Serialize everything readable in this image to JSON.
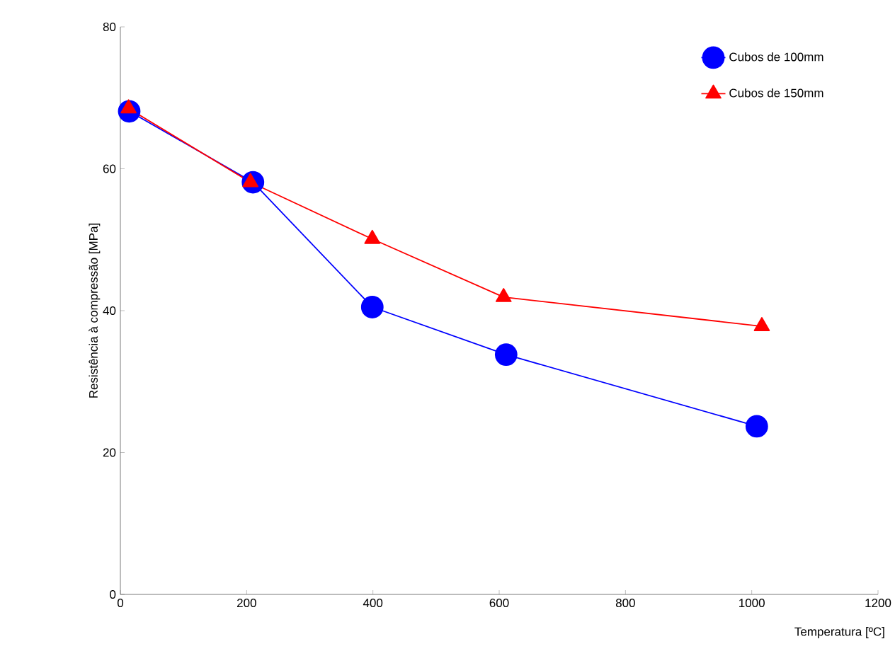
{
  "chart_data": {
    "type": "line",
    "xlabel": "Temperatura [ºC]",
    "ylabel": "Resistência à compressão [MPa]",
    "xlim": [
      0,
      1200
    ],
    "xticks": [
      0,
      200,
      400,
      600,
      800,
      1000,
      1200
    ],
    "ylim": [
      0,
      80
    ],
    "yticks": [
      0,
      20,
      40,
      60,
      80
    ],
    "grid": false,
    "legend": "top right",
    "line_style": "solid",
    "series": [
      {
        "name": "Cubos de 100mm",
        "color": "#0000ff",
        "marker": "circle",
        "x": [
          14,
          210,
          399,
          611,
          1008
        ],
        "values": [
          68.1,
          58.1,
          40.5,
          33.8,
          23.7
        ]
      },
      {
        "name": "Cubos de 150mm",
        "color": "#ff0000",
        "marker": "triangle",
        "x": [
          13,
          206,
          399,
          607,
          1016
        ],
        "values": [
          68.5,
          58.1,
          50.1,
          41.9,
          37.8
        ]
      }
    ]
  }
}
